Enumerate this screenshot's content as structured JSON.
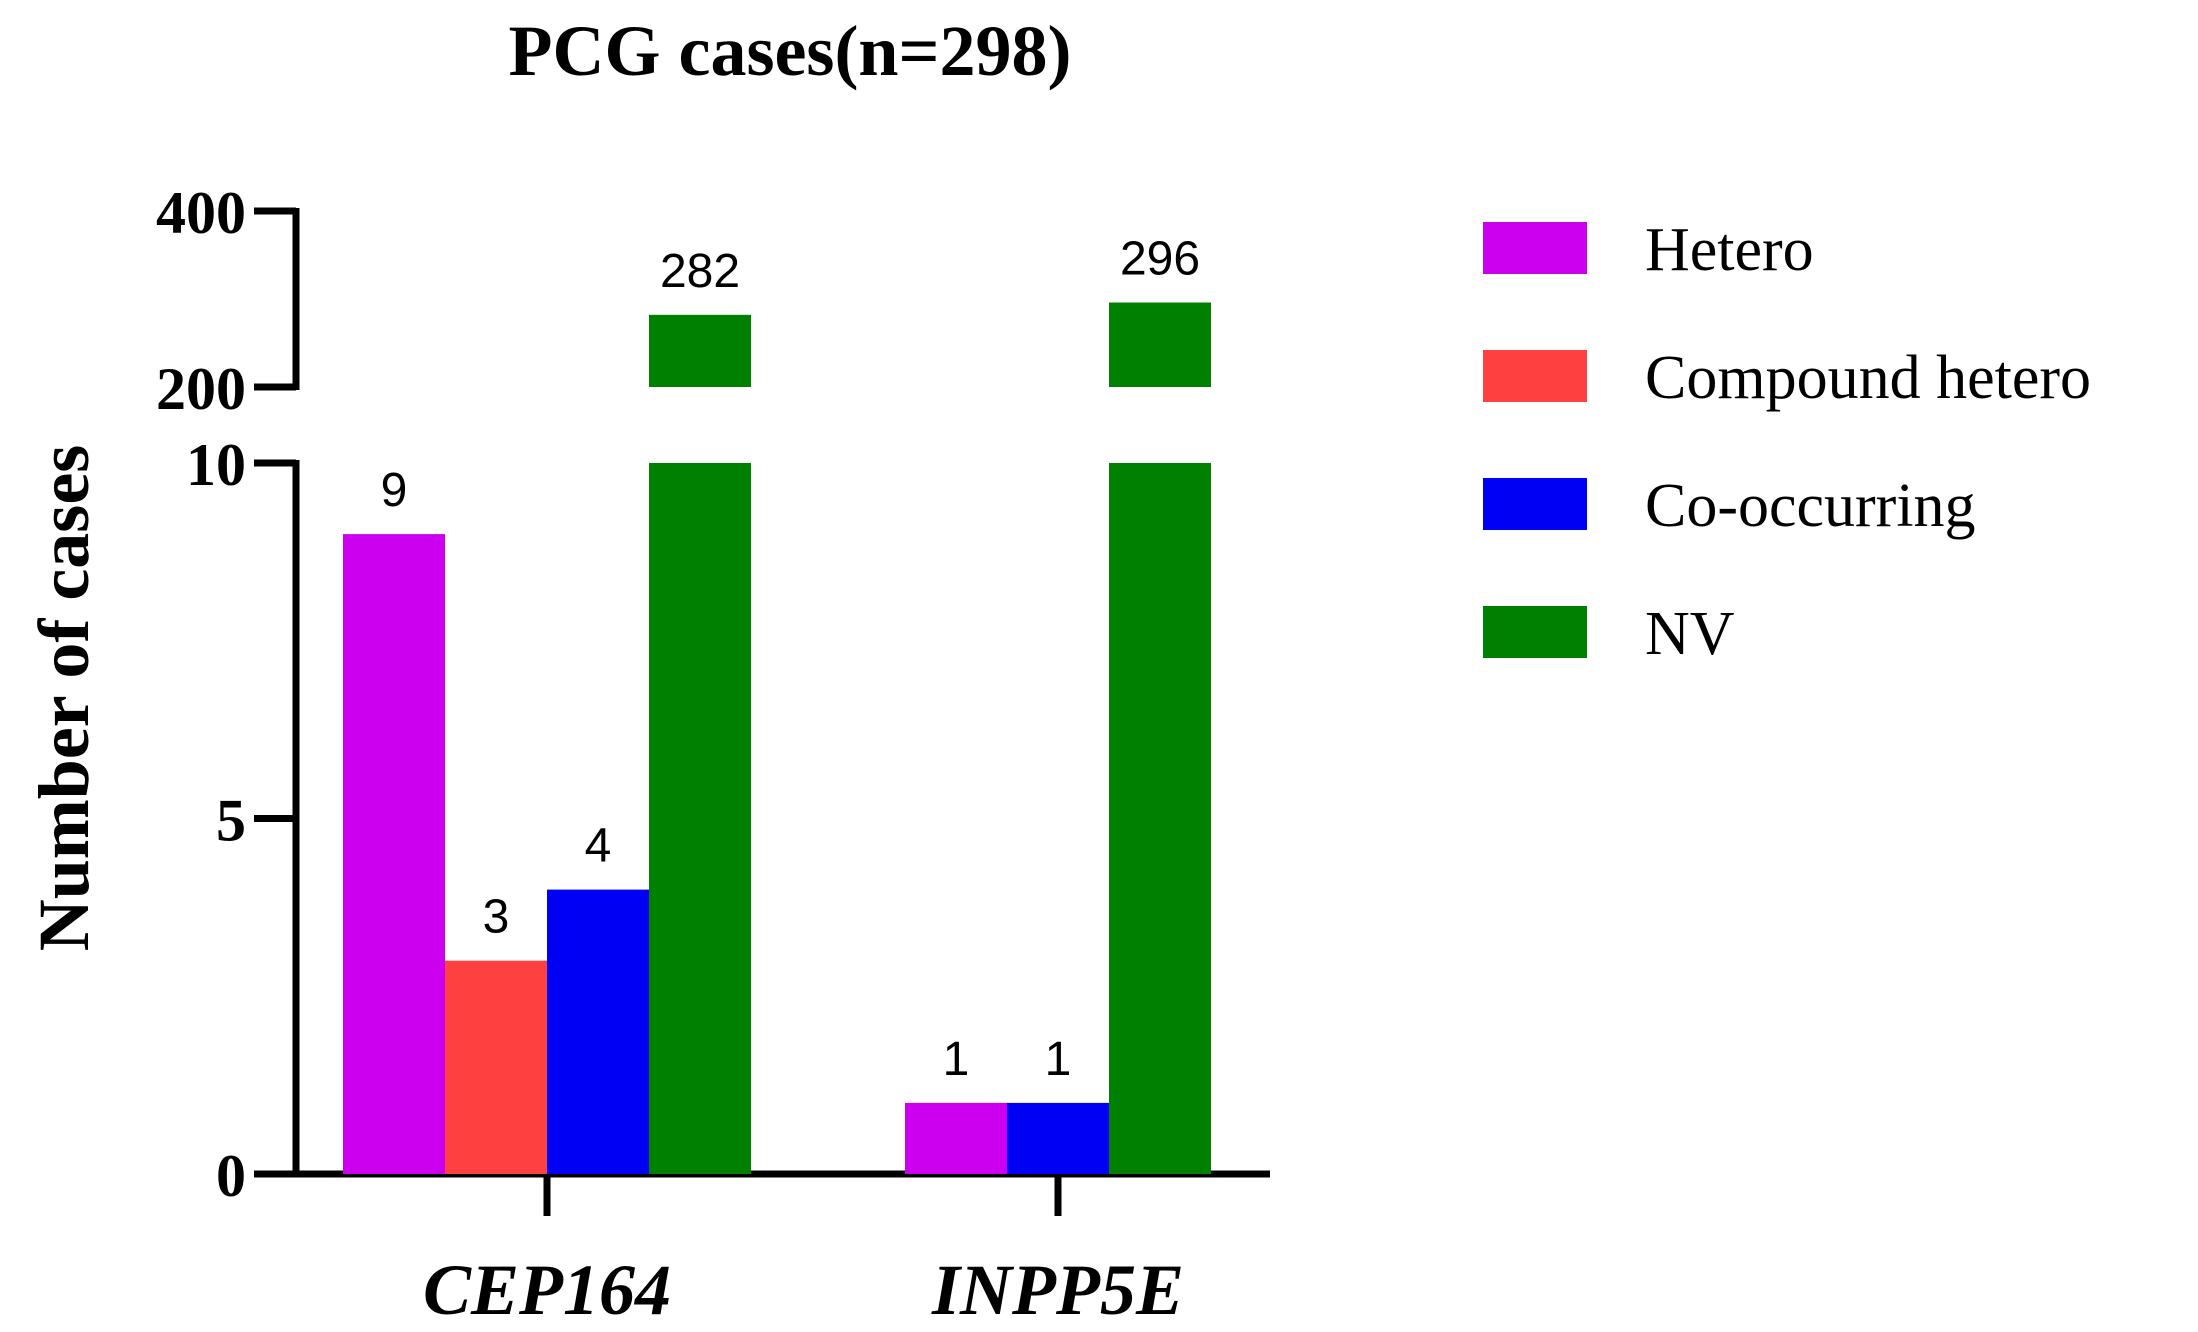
{
  "chart_data": {
    "type": "bar",
    "title": "PCG cases(n=298)",
    "ylabel": "Number of cases",
    "xlabel": "",
    "categories": [
      "CEP164",
      "INPP5E"
    ],
    "y_axis": {
      "broken": true,
      "lower_segment": {
        "range": [
          0,
          10
        ],
        "ticks": [
          "0",
          "5",
          "10"
        ]
      },
      "upper_segment": {
        "range": [
          200,
          400
        ],
        "ticks": [
          "200",
          "400"
        ]
      }
    },
    "series": [
      {
        "name": "Hetero",
        "color": "#CC00EE",
        "values": [
          9,
          1
        ],
        "labels": [
          "9",
          "1"
        ]
      },
      {
        "name": "Compound hetero",
        "color": "#FF4040",
        "values": [
          3,
          null
        ],
        "labels": [
          "3",
          ""
        ]
      },
      {
        "name": "Co-occurring",
        "color": "#0000F5",
        "values": [
          4,
          1
        ],
        "labels": [
          "4",
          "1"
        ]
      },
      {
        "name": "NV",
        "color": "#008000",
        "values": [
          282,
          296
        ],
        "labels": [
          "282",
          "296"
        ]
      }
    ],
    "legend_position": "right",
    "grid": false
  }
}
